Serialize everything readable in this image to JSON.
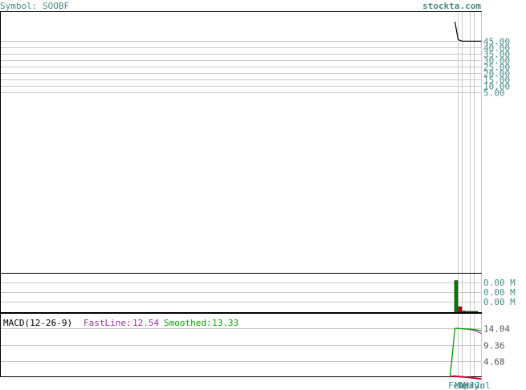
{
  "header": {
    "symbol_label": "Symbol: SOOBF",
    "site": "stockta.com"
  },
  "colors": {
    "frame": "#000000",
    "grid": "#c8c8c8",
    "text_teal": "#4a8a8a",
    "price_line": "#000000",
    "volume_up": "#008000",
    "volume_down": "#cc0000",
    "fastline": "#993399",
    "smoothed": "#00aa00",
    "histogram": "#cc0033"
  },
  "chart_data": [
    {
      "type": "line",
      "panel": "price",
      "title": "Symbol: SOOBF",
      "y_ticks": [
        "45.00",
        "40.00",
        "35.00",
        "30.00",
        "25.00",
        "20.00",
        "15.00",
        "10.00",
        "5.00"
      ],
      "y_tick_values": [
        45,
        40,
        35,
        30,
        25,
        20,
        15,
        10,
        5
      ],
      "ylim": [
        0,
        50
      ],
      "series": [
        {
          "values": [
            60.0,
            46.0,
            44.8,
            44.8,
            44.8,
            44.8,
            44.8
          ]
        }
      ]
    },
    {
      "type": "bar",
      "panel": "volume",
      "y_ticks": [
        "0.00 M",
        "0.00 M",
        "0.00 M"
      ],
      "ylim": [
        0,
        1
      ],
      "values": [
        0.82,
        0.14,
        0.03,
        0.01,
        0.01,
        0.01
      ],
      "directions": [
        "up",
        "down",
        "up",
        "up",
        "up",
        "up"
      ]
    },
    {
      "type": "line",
      "panel": "macd",
      "title": "MACD(12-26-9)",
      "fastline_label": "FastLine:",
      "fastline_value": "12.54",
      "smoothed_label": "Smoothed:",
      "smoothed_value": "13.33",
      "y_ticks": [
        "14.04",
        "9.36",
        "4.68"
      ],
      "y_tick_values": [
        14.04,
        9.36,
        4.68
      ],
      "ylim": [
        0,
        15.5
      ],
      "series": [
        {
          "name": "FastLine",
          "values": [
            0.3,
            14.0,
            14.0,
            13.9,
            13.7,
            13.3,
            12.54
          ]
        },
        {
          "name": "Smoothed",
          "values": [
            0.1,
            13.9,
            14.0,
            13.9,
            13.8,
            13.6,
            13.33
          ]
        },
        {
          "values": [
            0.3,
            0.4,
            0.3,
            0.2,
            0.0,
            -0.2,
            -0.4
          ]
        }
      ]
    }
  ],
  "x_axis": {
    "labels": [
      "Feb",
      "Mar",
      "Apr",
      "May",
      "Jun",
      "Jul"
    ]
  }
}
